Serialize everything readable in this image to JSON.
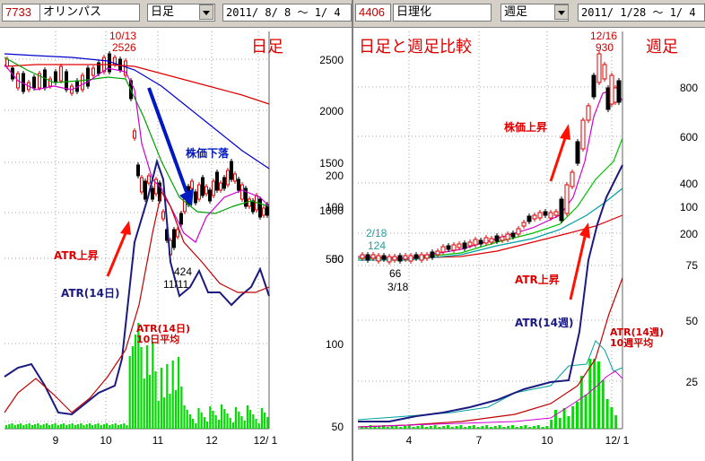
{
  "left": {
    "code": "7733",
    "name": "オリンパス",
    "period": "日足",
    "range": "2011/ 8/ 8 ～  1/ 4",
    "panel_title": "日足",
    "price_ticks": [
      "2500",
      "2000",
      "1500",
      "1000",
      "500"
    ],
    "atr_ticks": [
      "200",
      "100",
      "50"
    ],
    "vol_ticks": [
      "100",
      "50"
    ],
    "x_ticks": [
      "9",
      "10",
      "11",
      "12",
      "12/ 1"
    ],
    "annotations": {
      "peak": "10/13",
      "peak_value": "2526",
      "low_value": "424",
      "low_date": "11/11",
      "decline": "株価下落",
      "atr_up": "ATR上昇",
      "atr14": "ATR(14日)",
      "atr_avg_1": "ATR(14日)",
      "atr_avg_2": "10日平均"
    },
    "colors": {
      "ma_short": "#d000d0",
      "ma_mid": "#00a000",
      "ma_long_1": "#e00000",
      "ma_long_2": "#0000d0",
      "atr": "#1a1a80",
      "atr_avg": "#c00000",
      "volume": "#00dd00"
    }
  },
  "right": {
    "code": "4406",
    "name": "日理化",
    "period": "週足",
    "range": "2011/ 1/28 ～  1/ 4",
    "panel_title_1": "日足と週足比較",
    "panel_title_2": "週足",
    "price_ticks": [
      "800",
      "600",
      "400",
      "200"
    ],
    "atr_ticks": [
      "100",
      "75",
      "50",
      "25"
    ],
    "x_ticks": [
      "4",
      "7",
      "10",
      "12/ 1"
    ],
    "annotations": {
      "peak": "12/16",
      "peak_value": "930",
      "start_date": "2/18",
      "start_value": "124",
      "low_value": "66",
      "low_date": "3/18",
      "rise": "株価上昇",
      "atr_up": "ATR上昇",
      "atr14": "ATR(14週)",
      "atr_avg_1": "ATR(14週)",
      "atr_avg_2": "10週平均"
    },
    "colors": {
      "ma_1": "#d000d0",
      "ma_2": "#00c000",
      "ma_3": "#00a0a0",
      "ma_4": "#e00000",
      "atr": "#1a1a80",
      "atr_avg": "#c00000",
      "volume": "#00dd00"
    }
  }
}
